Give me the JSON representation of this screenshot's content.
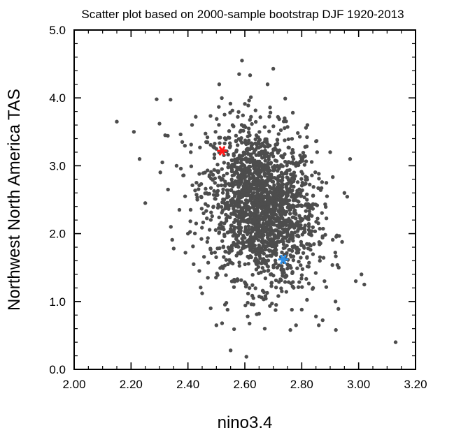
{
  "chart_data": {
    "type": "scatter",
    "title": "Scatter plot based on 2000-sample bootstrap DJF 1920-2013",
    "xlabel": "nino3.4",
    "ylabel": "Northwest North America TAS",
    "xlim": [
      2.0,
      3.2
    ],
    "ylim": [
      0.0,
      5.0
    ],
    "x_ticks": [
      "2.00",
      "2.20",
      "2.40",
      "2.60",
      "2.80",
      "3.00",
      "3.20"
    ],
    "y_ticks": [
      "0.0",
      "1.0",
      "2.0",
      "3.0",
      "4.0",
      "5.0"
    ],
    "grid": false,
    "colors": {
      "points": "#4d4d4d",
      "highlight_red": "#ff1a1a",
      "highlight_blue": "#2e8fe6"
    },
    "series": [
      {
        "values": [
          [
            2.15,
            3.65
          ],
          [
            2.21,
            3.5
          ],
          [
            2.23,
            3.1
          ],
          [
            2.25,
            2.45
          ],
          [
            2.29,
            3.98
          ],
          [
            2.3,
            3.62
          ],
          [
            2.31,
            3.05
          ],
          [
            2.32,
            3.45
          ],
          [
            2.33,
            2.65
          ],
          [
            2.34,
            2.1
          ],
          [
            2.35,
            1.78
          ],
          [
            2.36,
            3.0
          ],
          [
            2.37,
            2.35
          ],
          [
            2.38,
            3.35
          ],
          [
            2.39,
            2.55
          ],
          [
            2.4,
            2.0
          ],
          [
            2.41,
            3.2
          ],
          [
            2.42,
            1.55
          ],
          [
            2.43,
            2.75
          ],
          [
            2.44,
            1.45
          ],
          [
            2.45,
            1.12
          ],
          [
            2.46,
            2.9
          ],
          [
            2.47,
            1.35
          ],
          [
            2.48,
            0.9
          ],
          [
            2.5,
            0.65
          ],
          [
            2.51,
            4.2
          ],
          [
            2.52,
            0.68
          ],
          [
            2.535,
            0.98
          ],
          [
            2.55,
            0.28
          ],
          [
            2.56,
            1.3
          ],
          [
            2.58,
            4.35
          ],
          [
            2.59,
            4.55
          ],
          [
            2.61,
            0.78
          ],
          [
            2.63,
            1.05
          ],
          [
            2.65,
            0.82
          ],
          [
            2.67,
            0.6
          ],
          [
            2.68,
            4.2
          ],
          [
            2.7,
            4.43
          ],
          [
            2.71,
            0.95
          ],
          [
            2.73,
            1.15
          ],
          [
            2.74,
            3.7
          ],
          [
            2.76,
            0.58
          ],
          [
            2.78,
            0.65
          ],
          [
            2.8,
            0.88
          ],
          [
            2.82,
            3.6
          ],
          [
            2.84,
            1.2
          ],
          [
            2.85,
            0.78
          ],
          [
            2.86,
            0.65
          ],
          [
            2.88,
            1.3
          ],
          [
            2.9,
            3.2
          ],
          [
            2.92,
            0.58
          ],
          [
            2.93,
            1.5
          ],
          [
            2.95,
            2.6
          ],
          [
            2.97,
            3.1
          ],
          [
            2.99,
            1.3
          ],
          [
            3.01,
            1.4
          ],
          [
            3.02,
            1.25
          ],
          [
            3.13,
            0.4
          ]
        ]
      },
      {
        "name": "",
        "values": [
          [
            2.52,
            3.22
          ]
        ]
      },
      {
        "name": "",
        "values": [
          [
            2.735,
            1.62
          ]
        ]
      }
    ],
    "cloud": {
      "n": 1900,
      "mean_x": 2.66,
      "mean_y": 2.42,
      "sd_x": 0.095,
      "sd_y": 0.58,
      "corr": -0.18
    }
  }
}
